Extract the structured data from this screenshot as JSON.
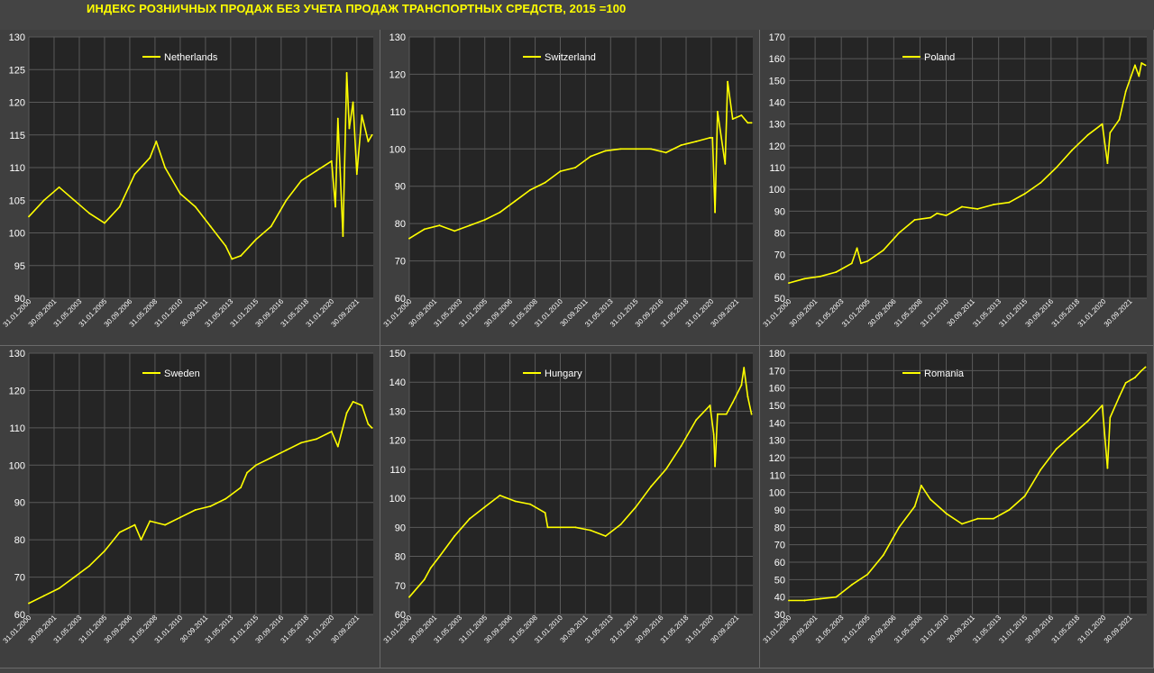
{
  "title": "ИНДЕКС РОЗНИЧНЫХ ПРОДАЖ БЕЗ УЧЕТА ПРОДАЖ ТРАНСПОРТНЫХ СРЕДСТВ, 2015 =100",
  "colors": {
    "line": "#ffff00",
    "plot_bg": "#252525",
    "grid": "#5a5a5a",
    "text": "#ffffff"
  },
  "x_tick_labels": [
    "31.01.2000",
    "30.09.2001",
    "31.05.2003",
    "31.01.2005",
    "30.09.2006",
    "31.05.2008",
    "31.01.2010",
    "30.09.2011",
    "31.05.2013",
    "31.01.2015",
    "30.09.2016",
    "31.05.2018",
    "31.01.2020",
    "30.09.2021"
  ],
  "chart_data": [
    {
      "type": "line",
      "series": [
        {
          "name": "Netherlands"
        }
      ],
      "ylim": [
        90,
        130
      ],
      "yticks": [
        90,
        95,
        100,
        105,
        110,
        115,
        120,
        125,
        130
      ],
      "legend": "top-left",
      "x": [
        "2000-01",
        "2001-01",
        "2002-01",
        "2003-01",
        "2004-01",
        "2005-01",
        "2006-01",
        "2007-01",
        "2008-01",
        "2008-06",
        "2009-01",
        "2010-01",
        "2011-01",
        "2012-01",
        "2013-01",
        "2013-06",
        "2014-01",
        "2015-01",
        "2016-01",
        "2017-01",
        "2018-01",
        "2019-01",
        "2020-01",
        "2020-04",
        "2020-06",
        "2020-10",
        "2021-01",
        "2021-03",
        "2021-06",
        "2021-09",
        "2022-01",
        "2022-06",
        "2022-09"
      ],
      "values": [
        102.5,
        105,
        107,
        105,
        103,
        101.5,
        104,
        109,
        111.5,
        114,
        110,
        106,
        104,
        101,
        98,
        96,
        96.5,
        99,
        101,
        105,
        108,
        109.5,
        111,
        104,
        117.5,
        99.5,
        124.5,
        116,
        120,
        109,
        118,
        114,
        115
      ]
    },
    {
      "type": "line",
      "series": [
        {
          "name": "Switzerland"
        }
      ],
      "ylim": [
        60,
        130
      ],
      "yticks": [
        60,
        70,
        80,
        90,
        100,
        110,
        120,
        130
      ],
      "legend": "top-left",
      "x": [
        "2000-01",
        "2001-01",
        "2002-01",
        "2003-01",
        "2004-01",
        "2005-01",
        "2006-01",
        "2007-01",
        "2008-01",
        "2009-01",
        "2010-01",
        "2011-01",
        "2012-01",
        "2013-01",
        "2014-01",
        "2015-01",
        "2016-01",
        "2017-01",
        "2018-01",
        "2019-01",
        "2019-12",
        "2020-02",
        "2020-04",
        "2020-06",
        "2020-12",
        "2021-02",
        "2021-06",
        "2022-01",
        "2022-06",
        "2022-09"
      ],
      "values": [
        76,
        78.5,
        79.5,
        78,
        79.5,
        81,
        83,
        86,
        89,
        91,
        94,
        95,
        98,
        99.5,
        100,
        100,
        100,
        99,
        101,
        102,
        103,
        103,
        83,
        110,
        96,
        118,
        108,
        109,
        107,
        107
      ]
    },
    {
      "type": "line",
      "series": [
        {
          "name": "Poland"
        }
      ],
      "ylim": [
        50,
        170
      ],
      "yticks": [
        50,
        60,
        70,
        80,
        90,
        100,
        110,
        120,
        130,
        140,
        150,
        160,
        170
      ],
      "legend": "top-left",
      "x": [
        "2000-01",
        "2001-01",
        "2002-01",
        "2003-01",
        "2004-01",
        "2004-05",
        "2004-08",
        "2005-01",
        "2006-01",
        "2007-01",
        "2008-01",
        "2009-01",
        "2009-06",
        "2010-01",
        "2011-01",
        "2012-01",
        "2013-01",
        "2014-01",
        "2015-01",
        "2016-01",
        "2017-01",
        "2018-01",
        "2019-01",
        "2019-12",
        "2020-04",
        "2020-06",
        "2021-01",
        "2021-06",
        "2022-01",
        "2022-04",
        "2022-06",
        "2022-09"
      ],
      "values": [
        57,
        59,
        60,
        62,
        66,
        73,
        66,
        67,
        72,
        80,
        86,
        87,
        89,
        88,
        92,
        91,
        93,
        94,
        98,
        103,
        110,
        118,
        125,
        130,
        112,
        126,
        132,
        145,
        157,
        152,
        158,
        157
      ]
    },
    {
      "type": "line",
      "series": [
        {
          "name": "Sweden"
        }
      ],
      "ylim": [
        60,
        130
      ],
      "yticks": [
        60,
        70,
        80,
        90,
        100,
        110,
        120,
        130
      ],
      "legend": "top-left",
      "x": [
        "2000-01",
        "2001-01",
        "2002-01",
        "2003-01",
        "2004-01",
        "2005-01",
        "2006-01",
        "2007-01",
        "2007-06",
        "2008-01",
        "2009-01",
        "2010-01",
        "2011-01",
        "2012-01",
        "2013-01",
        "2014-01",
        "2014-06",
        "2015-01",
        "2016-01",
        "2017-01",
        "2018-01",
        "2019-01",
        "2020-01",
        "2020-06",
        "2021-01",
        "2021-06",
        "2022-01",
        "2022-06",
        "2022-09"
      ],
      "values": [
        63,
        65,
        67,
        70,
        73,
        77,
        82,
        84,
        80,
        85,
        84,
        86,
        88,
        89,
        91,
        94,
        98,
        100,
        102,
        104,
        106,
        107,
        109,
        105,
        114,
        117,
        116,
        111,
        110
      ]
    },
    {
      "type": "line",
      "series": [
        {
          "name": "Hungary"
        }
      ],
      "ylim": [
        60,
        150
      ],
      "yticks": [
        60,
        70,
        80,
        90,
        100,
        110,
        120,
        130,
        140,
        150
      ],
      "legend": "top-left",
      "x": [
        "2000-01",
        "2001-01",
        "2001-06",
        "2002-01",
        "2003-01",
        "2004-01",
        "2005-01",
        "2006-01",
        "2007-01",
        "2008-01",
        "2009-01",
        "2009-03",
        "2010-01",
        "2011-01",
        "2012-01",
        "2013-01",
        "2014-01",
        "2015-01",
        "2016-01",
        "2017-01",
        "2018-01",
        "2019-01",
        "2019-12",
        "2020-03",
        "2020-04",
        "2020-06",
        "2021-01",
        "2021-06",
        "2022-01",
        "2022-03",
        "2022-06",
        "2022-09"
      ],
      "values": [
        66,
        72,
        76,
        80,
        87,
        93,
        97,
        101,
        99,
        98,
        95,
        90,
        90,
        90,
        89,
        87,
        91,
        97,
        104,
        110,
        118,
        127,
        132,
        122,
        111,
        129,
        129,
        133,
        139,
        145,
        135,
        129
      ]
    },
    {
      "type": "line",
      "series": [
        {
          "name": "Romania"
        }
      ],
      "ylim": [
        30,
        180
      ],
      "yticks": [
        30,
        40,
        50,
        60,
        70,
        80,
        90,
        100,
        110,
        120,
        130,
        140,
        150,
        160,
        170,
        180
      ],
      "legend": "top-left",
      "x": [
        "2000-01",
        "2001-01",
        "2002-01",
        "2003-01",
        "2004-01",
        "2005-01",
        "2006-01",
        "2007-01",
        "2008-01",
        "2008-06",
        "2009-01",
        "2010-01",
        "2011-01",
        "2012-01",
        "2013-01",
        "2014-01",
        "2015-01",
        "2016-01",
        "2017-01",
        "2018-01",
        "2019-01",
        "2019-12",
        "2020-04",
        "2020-06",
        "2021-01",
        "2021-06",
        "2022-01",
        "2022-06",
        "2022-09"
      ],
      "values": [
        38,
        38,
        39,
        40,
        47,
        53,
        64,
        80,
        92,
        104,
        96,
        88,
        82,
        85,
        85,
        90,
        98,
        113,
        125,
        133,
        141,
        150,
        114,
        143,
        155,
        163,
        166,
        170,
        172
      ]
    }
  ]
}
